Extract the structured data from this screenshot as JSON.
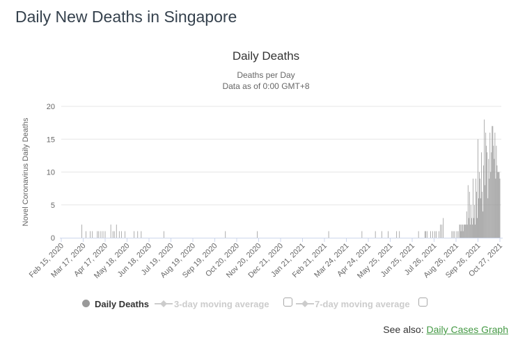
{
  "page": {
    "title": "Daily New Deaths in Singapore",
    "see_also_label": "See also:",
    "see_also_link": "Daily Cases Graph"
  },
  "legend": {
    "items": [
      {
        "label": "Daily Deaths",
        "marker": "circle",
        "active": true,
        "has_checkbox": false
      },
      {
        "label": "3-day moving average",
        "marker": "line-diamond",
        "active": false,
        "has_checkbox": true,
        "checked": false
      },
      {
        "label": "7-day moving average",
        "marker": "line-diamond",
        "active": false,
        "has_checkbox": true,
        "checked": false
      }
    ]
  },
  "colors": {
    "bar": "#9a9a9a",
    "grid": "#e6e6e6",
    "axis": "#ccd6eb",
    "tick_label": "#666666",
    "chart_title": "#333333",
    "subtitle": "#666666",
    "legend_active": "#333333",
    "legend_hidden": "#cccccc",
    "link_green": "#449944",
    "page_title": "#35414d"
  },
  "chart_data": {
    "type": "bar",
    "title": "Daily Deaths",
    "subtitle1": "Deaths per Day",
    "subtitle2": "Data as of 0:00 GMT+8",
    "series_name": "Daily Deaths",
    "hidden_series": [
      "3-day moving average",
      "7-day moving average"
    ],
    "xlabel": "",
    "ylabel": "Novel Coronavirus Daily Deaths",
    "ylim": [
      0,
      20
    ],
    "yticks": [
      0,
      5,
      10,
      15,
      20
    ],
    "grid": "horizontal",
    "legend_position": "bottom",
    "start_date": "2020-02-15",
    "end_date": "2021-10-27",
    "x_tick_labels": [
      "Feb 15, 2020",
      "Mar 17, 2020",
      "Apr 17, 2020",
      "May 18, 2020",
      "Jun 18, 2020",
      "Jul 19, 2020",
      "Aug 19, 2020",
      "Sep 19, 2020",
      "Oct 20, 2020",
      "Nov 20, 2020",
      "Dec 21, 2020",
      "Jan 21, 2021",
      "Feb 21, 2021",
      "Mar 24, 2021",
      "Apr 24, 2021",
      "May 25, 2021",
      "Jun 25, 2021",
      "Jul 26, 2021",
      "Aug 26, 2021",
      "Sep 26, 2021",
      "Oct 27, 2021"
    ],
    "points_nonzero": [
      [
        "2020-03-15",
        2
      ],
      [
        "2020-03-21",
        1
      ],
      [
        "2020-03-27",
        1
      ],
      [
        "2020-03-30",
        1
      ],
      [
        "2020-04-06",
        1
      ],
      [
        "2020-04-08",
        1
      ],
      [
        "2020-04-11",
        1
      ],
      [
        "2020-04-14",
        1
      ],
      [
        "2020-04-17",
        1
      ],
      [
        "2020-04-25",
        2
      ],
      [
        "2020-04-28",
        1
      ],
      [
        "2020-04-30",
        1
      ],
      [
        "2020-05-03",
        2
      ],
      [
        "2020-05-07",
        1
      ],
      [
        "2020-05-10",
        1
      ],
      [
        "2020-05-15",
        1
      ],
      [
        "2020-05-28",
        1
      ],
      [
        "2020-06-02",
        1
      ],
      [
        "2020-06-07",
        1
      ],
      [
        "2020-07-09",
        1
      ],
      [
        "2020-10-04",
        1
      ],
      [
        "2020-11-18",
        1
      ],
      [
        "2021-02-27",
        1
      ],
      [
        "2021-04-15",
        1
      ],
      [
        "2021-05-04",
        1
      ],
      [
        "2021-05-13",
        1
      ],
      [
        "2021-05-22",
        1
      ],
      [
        "2021-06-03",
        1
      ],
      [
        "2021-06-07",
        1
      ],
      [
        "2021-07-04",
        1
      ],
      [
        "2021-07-13",
        1
      ],
      [
        "2021-07-14",
        1
      ],
      [
        "2021-07-16",
        1
      ],
      [
        "2021-07-21",
        1
      ],
      [
        "2021-07-24",
        1
      ],
      [
        "2021-07-27",
        1
      ],
      [
        "2021-07-29",
        1
      ],
      [
        "2021-08-02",
        1
      ],
      [
        "2021-08-04",
        2
      ],
      [
        "2021-08-06",
        2
      ],
      [
        "2021-08-08",
        3
      ],
      [
        "2021-08-20",
        1
      ],
      [
        "2021-08-22",
        1
      ],
      [
        "2021-08-24",
        1
      ],
      [
        "2021-08-27",
        1
      ],
      [
        "2021-08-29",
        1
      ],
      [
        "2021-08-31",
        2
      ],
      [
        "2021-09-01",
        2
      ],
      [
        "2021-09-02",
        1
      ],
      [
        "2021-09-03",
        2
      ],
      [
        "2021-09-04",
        2
      ],
      [
        "2021-09-05",
        1
      ],
      [
        "2021-09-06",
        2
      ],
      [
        "2021-09-07",
        2
      ],
      [
        "2021-09-08",
        2
      ],
      [
        "2021-09-09",
        2
      ],
      [
        "2021-09-10",
        4
      ],
      [
        "2021-09-11",
        2
      ],
      [
        "2021-09-12",
        8
      ],
      [
        "2021-09-13",
        3
      ],
      [
        "2021-09-14",
        7
      ],
      [
        "2021-09-15",
        2
      ],
      [
        "2021-09-16",
        5
      ],
      [
        "2021-09-17",
        3
      ],
      [
        "2021-09-18",
        2
      ],
      [
        "2021-09-19",
        9
      ],
      [
        "2021-09-20",
        3
      ],
      [
        "2021-09-21",
        5
      ],
      [
        "2021-09-22",
        2
      ],
      [
        "2021-09-23",
        9
      ],
      [
        "2021-09-24",
        7
      ],
      [
        "2021-09-25",
        3
      ],
      [
        "2021-09-26",
        15
      ],
      [
        "2021-09-27",
        6
      ],
      [
        "2021-09-28",
        10
      ],
      [
        "2021-09-29",
        9
      ],
      [
        "2021-09-30",
        6
      ],
      [
        "2021-10-01",
        13
      ],
      [
        "2021-10-02",
        7
      ],
      [
        "2021-10-03",
        4
      ],
      [
        "2021-10-04",
        11
      ],
      [
        "2021-10-05",
        18
      ],
      [
        "2021-10-06",
        8
      ],
      [
        "2021-10-07",
        16
      ],
      [
        "2021-10-08",
        14
      ],
      [
        "2021-10-09",
        13
      ],
      [
        "2021-10-10",
        6
      ],
      [
        "2021-10-11",
        12
      ],
      [
        "2021-10-12",
        9
      ],
      [
        "2021-10-13",
        16
      ],
      [
        "2021-10-14",
        10
      ],
      [
        "2021-10-15",
        13
      ],
      [
        "2021-10-16",
        17
      ],
      [
        "2021-10-17",
        17
      ],
      [
        "2021-10-18",
        14
      ],
      [
        "2021-10-19",
        12
      ],
      [
        "2021-10-20",
        16
      ],
      [
        "2021-10-21",
        9
      ],
      [
        "2021-10-22",
        14
      ],
      [
        "2021-10-23",
        11
      ],
      [
        "2021-10-24",
        10
      ],
      [
        "2021-10-25",
        10
      ],
      [
        "2021-10-26",
        10
      ],
      [
        "2021-10-27",
        9
      ]
    ]
  }
}
